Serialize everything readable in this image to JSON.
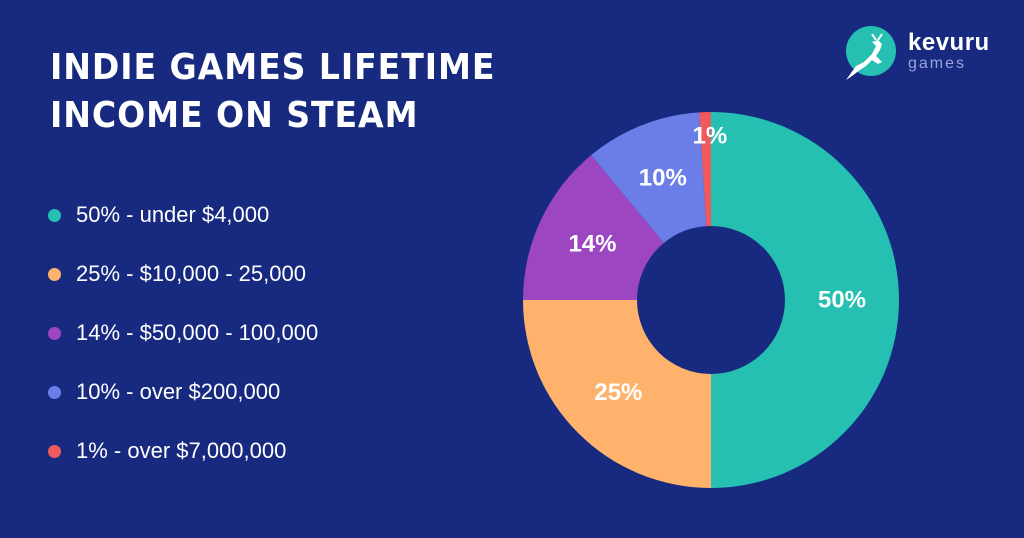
{
  "title": {
    "line1": "INDIE GAMES LIFETIME",
    "line2": "INCOME ON STEAM"
  },
  "logo": {
    "name": "kevuru",
    "sub": "games",
    "icon": "deer-icon",
    "color": "#25c0b2"
  },
  "legend": [
    {
      "text": "50% - under $4,000",
      "color": "#25c0b2"
    },
    {
      "text": "25% - $10,000 - 25,000",
      "color": "#ffb26b"
    },
    {
      "text": "14% - $50,000 - 100,000",
      "color": "#9c46c2"
    },
    {
      "text": "10% - over $200,000",
      "color": "#6b7de6"
    },
    {
      "text": "1% - over $7,000,000",
      "color": "#f05a5e"
    }
  ],
  "chart_data": {
    "type": "pie",
    "donut": true,
    "title": "INDIE GAMES LIFETIME INCOME ON STEAM",
    "categories": [
      "under $4,000",
      "$10,000 - 25,000",
      "$50,000 - 100,000",
      "over $200,000",
      "over $7,000,000"
    ],
    "values": [
      50,
      25,
      14,
      10,
      1
    ],
    "labels": [
      "50%",
      "25%",
      "14%",
      "10%",
      "1%"
    ],
    "colors": [
      "#25c0b2",
      "#ffb26b",
      "#9c46c2",
      "#6b7de6",
      "#f05a5e"
    ],
    "legend_position": "left"
  },
  "colors": {
    "background": "#172a80",
    "text": "#ffffff"
  }
}
